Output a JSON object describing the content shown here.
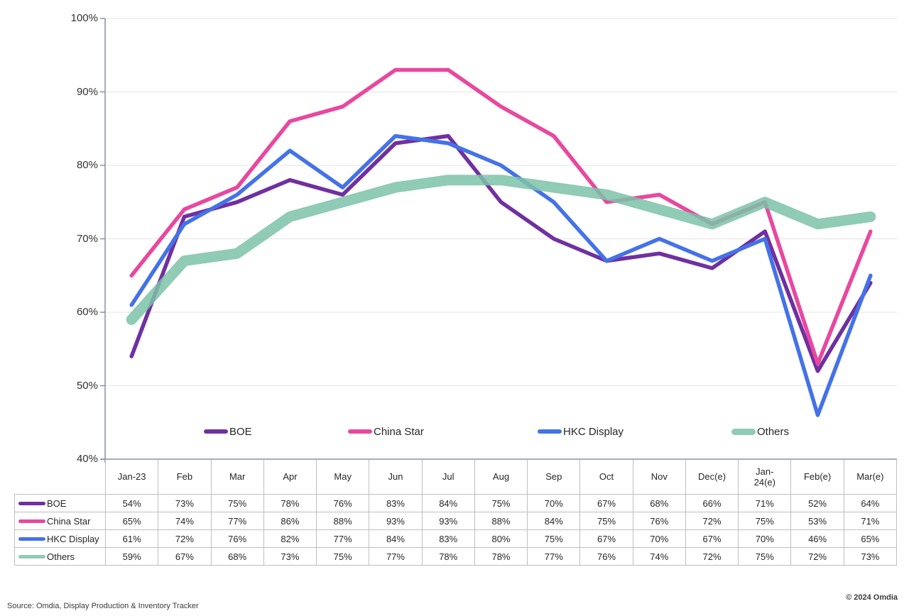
{
  "chart_data": {
    "type": "line",
    "title": "",
    "categories": [
      "Jan-23",
      "Feb",
      "Mar",
      "Apr",
      "May",
      "Jun",
      "Jul",
      "Aug",
      "Sep",
      "Oct",
      "Nov",
      "Dec(e)",
      "Jan-\n24(e)",
      "Feb(e)",
      "Mar(e)"
    ],
    "series": [
      {
        "name": "BOE",
        "color": "#7030A0",
        "line_width": 5.5,
        "opacity": 1,
        "values": [
          54,
          73,
          75,
          78,
          76,
          83,
          84,
          75,
          70,
          67,
          68,
          66,
          71,
          52,
          64
        ]
      },
      {
        "name": "China Star",
        "color": "#E8489F",
        "line_width": 5.5,
        "opacity": 1,
        "values": [
          65,
          74,
          77,
          86,
          88,
          93,
          93,
          88,
          84,
          75,
          76,
          72,
          75,
          53,
          71
        ]
      },
      {
        "name": "HKC Display",
        "color": "#4472E8",
        "line_width": 5.5,
        "opacity": 1,
        "values": [
          61,
          72,
          76,
          82,
          77,
          84,
          83,
          80,
          75,
          67,
          70,
          67,
          70,
          46,
          65
        ]
      },
      {
        "name": "Others",
        "color": "#7CC2A8",
        "line_width": 15,
        "opacity": 0.85,
        "values": [
          59,
          67,
          68,
          73,
          75,
          77,
          78,
          78,
          77,
          76,
          74,
          72,
          75,
          72,
          73
        ]
      }
    ],
    "ylim": [
      40,
      100
    ],
    "ytick_labels": [
      "100%",
      "90%",
      "80%",
      "70%",
      "60%",
      "50%",
      "40%"
    ],
    "value_suffix": "%",
    "grid": true,
    "legend_position": "inside-bottom",
    "colors": {
      "grid_line": "#e4e4e4",
      "axis_line": "#8a90a0",
      "table_border": "#bfbfbf",
      "text": "#262626"
    }
  },
  "footer": {
    "source": "Source: Omdia, Display Production & Inventory Tracker",
    "copyright": "© 2024 Omdia"
  }
}
